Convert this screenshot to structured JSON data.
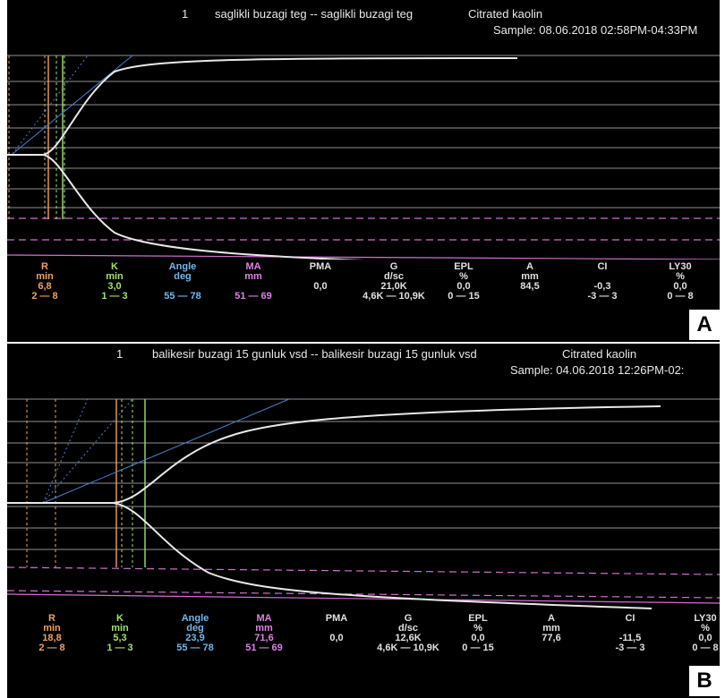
{
  "panelA": {
    "index": "1",
    "sample_name": "saglikli buzagi teg -- saglikli buzagi teg",
    "activator": "Citrated kaolin",
    "sample_time": "Sample: 08.06.2018 02:58PM-04:33PM",
    "label": "A",
    "params": [
      {
        "name": "R",
        "unit": "min",
        "value": "6,8",
        "range": "2 — 8",
        "color": "#f0a060"
      },
      {
        "name": "K",
        "unit": "min",
        "value": "3,0",
        "range": "1 — 3",
        "color": "#a0e070"
      },
      {
        "name": "Angle",
        "unit": "deg",
        "value": "",
        "range": "55 — 78",
        "color": "#70b8f0"
      },
      {
        "name": "MA",
        "unit": "mm",
        "value": "",
        "range": "51 — 69",
        "color": "#e080e8"
      },
      {
        "name": "PMA",
        "unit": "",
        "value": "0,0",
        "range": "",
        "color": "#e0e0e0"
      },
      {
        "name": "G",
        "unit": "d/sc",
        "value": "21,0K",
        "range": "4,6K — 10,9K",
        "color": "#e0e0e0"
      },
      {
        "name": "EPL",
        "unit": "%",
        "value": "0,0",
        "range": "0 — 15",
        "color": "#e0e0e0"
      },
      {
        "name": "A",
        "unit": "mm",
        "value": "84,5",
        "range": "",
        "color": "#e0e0e0"
      },
      {
        "name": "CI",
        "unit": "",
        "value": "-0,3",
        "range": "-3 — 3",
        "color": "#e0e0e0"
      },
      {
        "name": "LY30",
        "unit": "%",
        "value": "0,0",
        "range": "0 — 8",
        "color": "#e0e0e0"
      }
    ]
  },
  "panelB": {
    "index": "1",
    "sample_name": "balikesir buzagi 15 gunluk vsd -- balikesir buzagi 15 gunluk vsd",
    "activator": "Citrated kaolin",
    "sample_time": "Sample: 04.06.2018 12:26PM-02:",
    "label": "B",
    "params": [
      {
        "name": "R",
        "unit": "min",
        "value": "18,8",
        "range": "2 — 8",
        "color": "#f0a060"
      },
      {
        "name": "K",
        "unit": "min",
        "value": "5,3",
        "range": "1 — 3",
        "color": "#a0e070"
      },
      {
        "name": "Angle",
        "unit": "deg",
        "value": "23,9",
        "range": "55 — 78",
        "color": "#70b8f0"
      },
      {
        "name": "MA",
        "unit": "mm",
        "value": "71,6",
        "range": "51 — 69",
        "color": "#e080e8"
      },
      {
        "name": "PMA",
        "unit": "",
        "value": "0,0",
        "range": "",
        "color": "#e0e0e0"
      },
      {
        "name": "G",
        "unit": "d/sc",
        "value": "12,6K",
        "range": "4,6K — 10,9K",
        "color": "#e0e0e0"
      },
      {
        "name": "EPL",
        "unit": "%",
        "value": "0,0",
        "range": "0 — 15",
        "color": "#e0e0e0"
      },
      {
        "name": "A",
        "unit": "mm",
        "value": "77,6",
        "range": "",
        "color": "#e0e0e0"
      },
      {
        "name": "CI",
        "unit": "",
        "value": "-11,5",
        "range": "-3 — 3",
        "color": "#e0e0e0"
      },
      {
        "name": "LY30",
        "unit": "%",
        "value": "0,0",
        "range": "0 — 8",
        "color": "#e0e0e0"
      }
    ]
  }
}
